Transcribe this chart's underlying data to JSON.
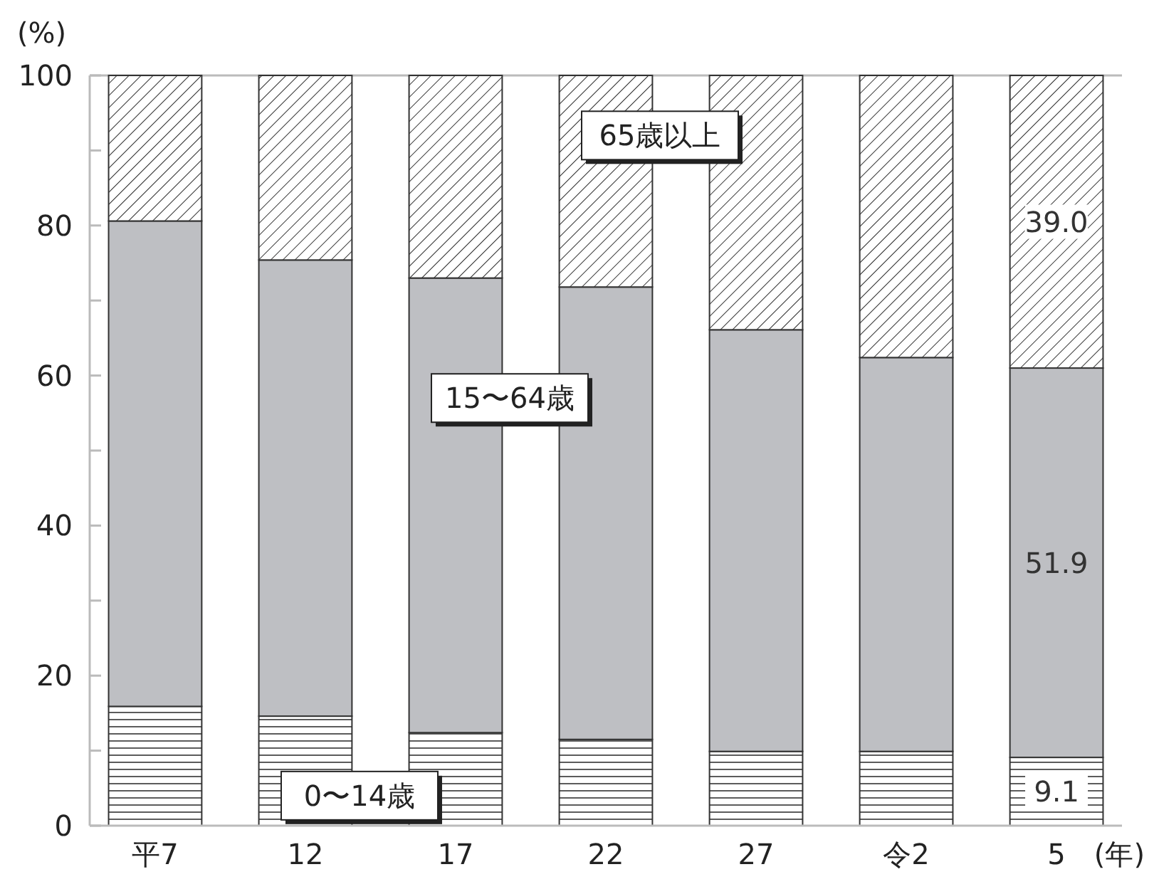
{
  "chart_data": {
    "type": "bar",
    "stacked": true,
    "ylabel": "(%)",
    "xlabel": "(年)",
    "categories": [
      "平7",
      "12",
      "17",
      "22",
      "27",
      "令2",
      "5"
    ],
    "series": [
      {
        "name": "0〜14歳",
        "color": "#333333",
        "values": [
          15.9,
          14.6,
          12.4,
          11.5,
          9.9,
          9.9,
          9.1
        ],
        "value_labels": [
          null,
          null,
          null,
          null,
          null,
          null,
          "9.1"
        ]
      },
      {
        "name": "15〜64歳",
        "color": "#bebfc3",
        "values": [
          64.7,
          60.8,
          60.6,
          60.3,
          56.2,
          52.5,
          51.9
        ],
        "value_labels": [
          null,
          null,
          null,
          null,
          null,
          null,
          "51.9"
        ]
      },
      {
        "name": "65歳以上",
        "color": "#333333",
        "values": [
          19.4,
          24.6,
          27.0,
          28.2,
          33.9,
          37.6,
          39.0
        ],
        "value_labels": [
          null,
          null,
          null,
          null,
          null,
          null,
          "39.0"
        ]
      }
    ],
    "ylim": [
      0,
      100
    ],
    "yticks": [
      0,
      {
        "value": 10,
        "label": null
      },
      20,
      {
        "value": 30,
        "label": null
      },
      40,
      {
        "value": 50,
        "label": null
      },
      60,
      {
        "value": 70,
        "label": null
      },
      80,
      {
        "value": 90,
        "label": null
      },
      100
    ],
    "grid": false
  }
}
